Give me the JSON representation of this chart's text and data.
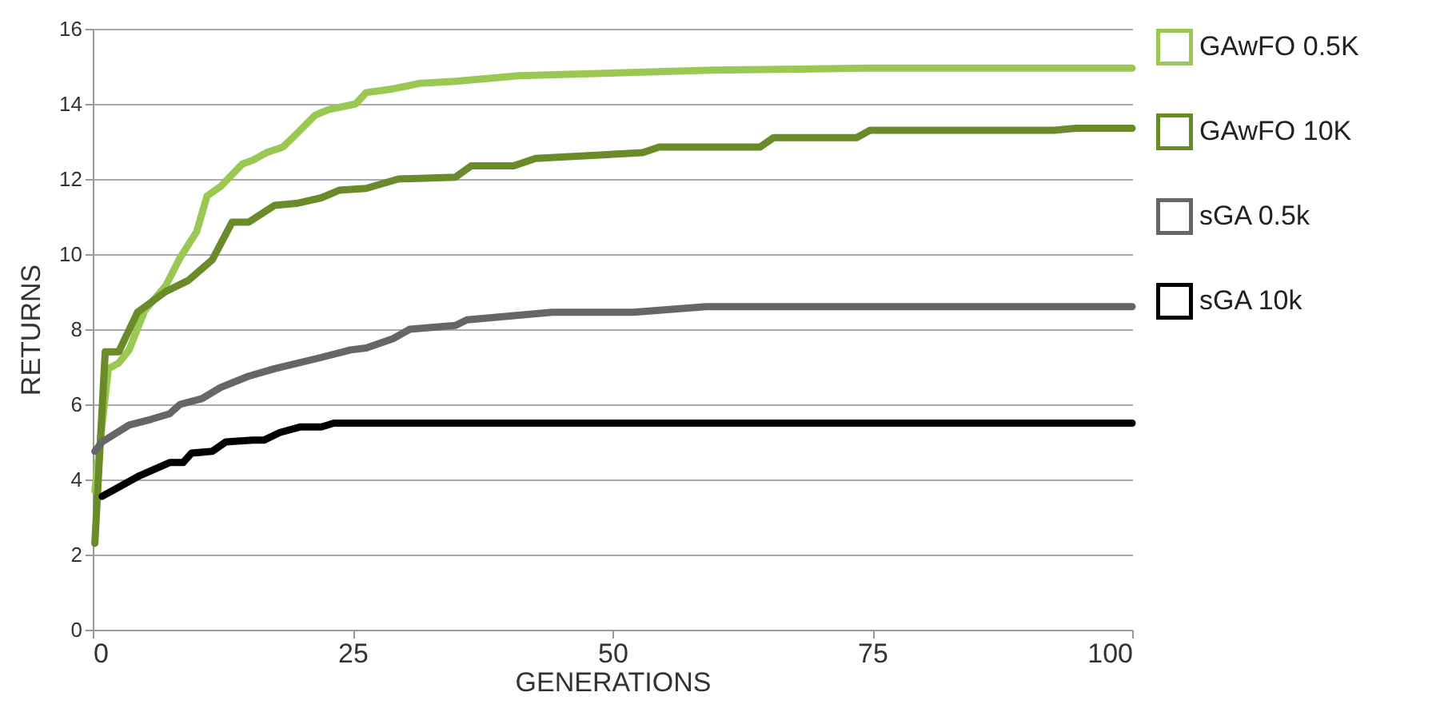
{
  "chart_data": {
    "type": "line",
    "xlabel": "GENERATIONS",
    "ylabel": "RETURNS",
    "xlim": [
      0,
      100
    ],
    "xticks": [
      0,
      25,
      50,
      75,
      100
    ],
    "ylim": [
      0,
      16
    ],
    "yticks": [
      0,
      2,
      4,
      6,
      8,
      10,
      12,
      14,
      16
    ],
    "grid": "y",
    "legend": "right",
    "marker": "none",
    "series": [
      {
        "name": "GAwFO 0.5K",
        "color": "#9bc853",
        "x": [
          0.2,
          1.5,
          2.5,
          3.5,
          5,
          7,
          8.4,
          10,
          11,
          12.3,
          14.4,
          15.4,
          16.7,
          18.3,
          19.6,
          21.4,
          22.7,
          25.3,
          26.3,
          28.9,
          31.5,
          34.9,
          41,
          59.6,
          74.5,
          100
        ],
        "values": [
          3.7,
          6.95,
          7.1,
          7.45,
          8.5,
          9.15,
          9.9,
          10.6,
          11.55,
          11.8,
          12.4,
          12.5,
          12.7,
          12.85,
          13.2,
          13.7,
          13.85,
          14.0,
          14.3,
          14.4,
          14.55,
          14.6,
          14.75,
          14.9,
          14.95,
          14.95
        ]
      },
      {
        "name": "GAwFO 10K",
        "color": "#698b2a",
        "x": [
          0.2,
          1.2,
          2.5,
          4.3,
          7,
          9.2,
          11.5,
          13.4,
          15,
          17.5,
          19.6,
          22,
          23.7,
          26.3,
          29.4,
          34.9,
          36.4,
          40.5,
          42.6,
          52.9,
          54.5,
          64.2,
          65.5,
          73.5,
          74.8,
          92.5,
          94.6,
          100
        ],
        "values": [
          2.3,
          7.4,
          7.4,
          8.45,
          9.0,
          9.3,
          9.85,
          10.85,
          10.85,
          11.3,
          11.35,
          11.5,
          11.7,
          11.75,
          12.0,
          12.05,
          12.35,
          12.35,
          12.55,
          12.7,
          12.85,
          12.85,
          13.1,
          13.1,
          13.3,
          13.3,
          13.35,
          13.35
        ]
      },
      {
        "name": "sGA 0.5k",
        "color": "#666666",
        "x": [
          0.2,
          0.9,
          3.5,
          5.6,
          7.4,
          8.4,
          10.5,
          12.3,
          15,
          17.5,
          22,
          24.8,
          26.3,
          28.9,
          30.5,
          34.9,
          36,
          44.2,
          52,
          59,
          100
        ],
        "values": [
          4.75,
          5.0,
          5.45,
          5.6,
          5.75,
          6.0,
          6.15,
          6.45,
          6.75,
          6.95,
          7.25,
          7.45,
          7.5,
          7.75,
          8.0,
          8.1,
          8.25,
          8.45,
          8.45,
          8.6,
          8.6
        ]
      },
      {
        "name": "sGA 10k",
        "color": "#000000",
        "x": [
          0.9,
          4.5,
          7.4,
          8.7,
          9.5,
          11.5,
          12.8,
          15.4,
          16.5,
          18,
          20,
          22,
          23.2,
          100
        ],
        "values": [
          3.55,
          4.1,
          4.45,
          4.45,
          4.7,
          4.75,
          5.0,
          5.05,
          5.05,
          5.25,
          5.4,
          5.4,
          5.5,
          5.5
        ]
      }
    ]
  }
}
